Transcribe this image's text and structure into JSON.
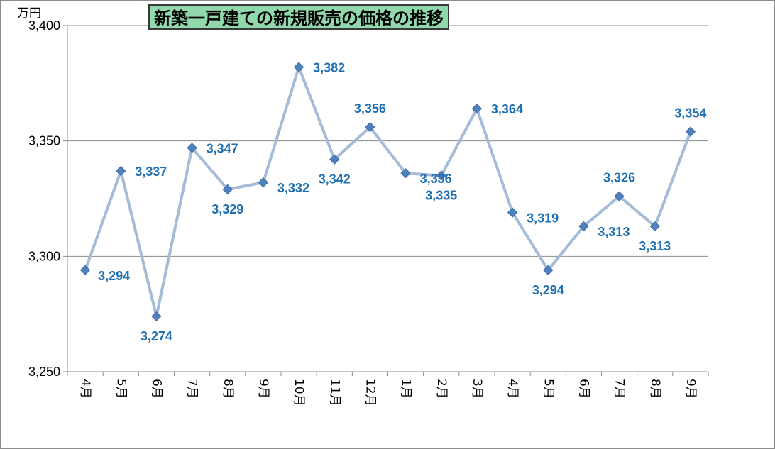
{
  "chart_data": {
    "type": "line",
    "title": "新築一戸建ての新規販売の価格の推移",
    "unit_label": "万円",
    "categories": [
      "4月",
      "5月",
      "6月",
      "7月",
      "8月",
      "9月",
      "10月",
      "11月",
      "12月",
      "1月",
      "2月",
      "3月",
      "4月",
      "5月",
      "6月",
      "7月",
      "8月",
      "9月"
    ],
    "values": [
      3294,
      3337,
      3274,
      3347,
      3329,
      3332,
      3382,
      3342,
      3356,
      3336,
      3335,
      3364,
      3319,
      3294,
      3313,
      3326,
      3313,
      3354
    ],
    "data_labels": [
      "3,294",
      "3,337",
      "3,274",
      "3,347",
      "3,329",
      "3,332",
      "3,382",
      "3,342",
      "3,356",
      "3,336",
      "3,335",
      "3,364",
      "3,319",
      "3,294",
      "3,313",
      "3,326",
      "3,313",
      "3,354"
    ],
    "y_ticks": [
      3250,
      3300,
      3350,
      3400
    ],
    "y_tick_labels": [
      "3,250",
      "3,300",
      "3,350",
      "3,400"
    ],
    "ylim": [
      3250,
      3400
    ],
    "grid": true,
    "legend": "none",
    "colors": {
      "line": "#a5bcd9",
      "marker": "#4f81bd",
      "data_label": "#1f6fb2",
      "title_bg": "#92d8ad",
      "grid": "#8c8c8c"
    }
  }
}
